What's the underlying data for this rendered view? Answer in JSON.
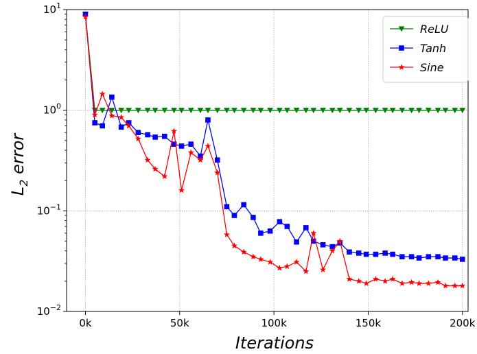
{
  "chart_data": {
    "type": "line",
    "title": "",
    "xlabel": "Iterations",
    "ylabel_main": "L",
    "ylabel_sub": "2",
    "ylabel_rest": " error",
    "yscale": "log",
    "xlim": [
      -10000,
      203000
    ],
    "ylim": [
      0.01,
      10
    ],
    "grid": true,
    "legend_position": "top-right",
    "xticks": [
      {
        "value": 0,
        "label": "0k"
      },
      {
        "value": 50000,
        "label": "50k"
      },
      {
        "value": 100000,
        "label": "100k"
      },
      {
        "value": 150000,
        "label": "150k"
      },
      {
        "value": 200000,
        "label": "200k"
      }
    ],
    "yticks": [
      {
        "value": 0.01,
        "base": "10",
        "exp": "−2"
      },
      {
        "value": 0.1,
        "base": "10",
        "exp": "−1"
      },
      {
        "value": 1,
        "base": "10",
        "exp": "0"
      },
      {
        "value": 10,
        "base": "10",
        "exp": "1"
      }
    ],
    "x": [
      0,
      5000,
      9000,
      14000,
      19000,
      23000,
      28000,
      33000,
      37000,
      42000,
      47000,
      51000,
      56000,
      61000,
      65000,
      70000,
      75000,
      79000,
      84000,
      89000,
      93000,
      98000,
      103000,
      107000,
      112000,
      117000,
      121000,
      126000,
      131000,
      135000,
      140000,
      145000,
      149000,
      154000,
      159000,
      163000,
      168000,
      173000,
      177000,
      182000,
      187000,
      191000,
      196000,
      200000
    ],
    "series": [
      {
        "name": "ReLU",
        "color": "#008000",
        "marker": "triangle-down",
        "values": [
          9.0,
          1.0,
          1.0,
          1.0,
          1.0,
          1.0,
          1.0,
          1.0,
          1.0,
          1.0,
          1.0,
          1.0,
          1.0,
          1.0,
          1.0,
          1.0,
          1.0,
          1.0,
          1.0,
          1.0,
          1.0,
          1.0,
          1.0,
          1.0,
          1.0,
          1.0,
          1.0,
          1.0,
          1.0,
          1.0,
          1.0,
          1.0,
          1.0,
          1.0,
          1.0,
          1.0,
          1.0,
          1.0,
          1.0,
          1.0,
          1.0,
          1.0,
          1.0,
          1.0
        ]
      },
      {
        "name": "Tanh",
        "color": "#0000ff",
        "marker": "square",
        "values": [
          9.0,
          0.75,
          0.7,
          1.35,
          0.68,
          0.75,
          0.6,
          0.57,
          0.54,
          0.55,
          0.46,
          0.44,
          0.46,
          0.35,
          0.8,
          0.32,
          0.11,
          0.09,
          0.115,
          0.086,
          0.06,
          0.063,
          0.078,
          0.07,
          0.049,
          0.068,
          0.05,
          0.046,
          0.044,
          0.048,
          0.039,
          0.038,
          0.037,
          0.037,
          0.038,
          0.037,
          0.035,
          0.035,
          0.034,
          0.035,
          0.035,
          0.034,
          0.034,
          0.033
        ]
      },
      {
        "name": "Sine",
        "color": "#ff0000",
        "marker": "star",
        "values": [
          8.5,
          0.9,
          1.45,
          0.88,
          0.85,
          0.7,
          0.52,
          0.32,
          0.26,
          0.22,
          0.62,
          0.16,
          0.38,
          0.32,
          0.44,
          0.24,
          0.058,
          0.045,
          0.039,
          0.035,
          0.033,
          0.031,
          0.027,
          0.028,
          0.031,
          0.025,
          0.06,
          0.026,
          0.04,
          0.05,
          0.021,
          0.02,
          0.019,
          0.021,
          0.02,
          0.021,
          0.019,
          0.0195,
          0.019,
          0.019,
          0.0195,
          0.018,
          0.018,
          0.018
        ]
      }
    ]
  }
}
